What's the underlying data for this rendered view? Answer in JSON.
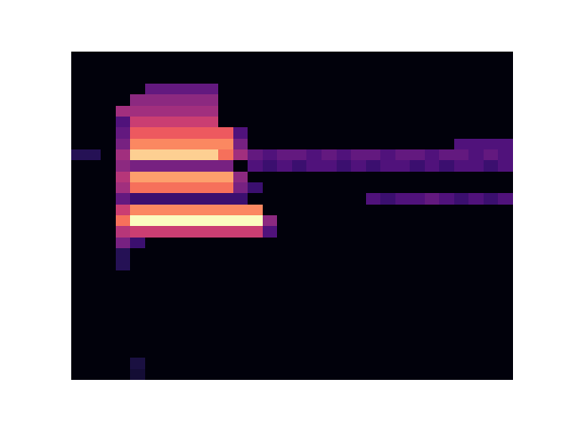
{
  "chart_data": {
    "type": "heatmap",
    "color": "magma",
    "tick_labels": false,
    "value_range": [
      0,
      100
    ],
    "cells": [
      [
        2,
        2,
        2,
        2,
        2,
        2,
        2,
        2,
        2,
        2,
        2,
        2,
        2,
        2,
        2,
        2,
        2,
        2,
        2,
        2,
        2,
        2,
        2,
        2,
        2,
        2,
        2,
        2,
        2,
        2
      ],
      [
        2,
        2,
        2,
        2,
        2,
        2,
        2,
        2,
        2,
        2,
        2,
        2,
        2,
        2,
        2,
        2,
        2,
        2,
        2,
        2,
        2,
        2,
        2,
        2,
        2,
        2,
        2,
        2,
        2,
        2
      ],
      [
        2,
        2,
        2,
        2,
        2,
        2,
        2,
        2,
        2,
        2,
        2,
        2,
        2,
        2,
        2,
        2,
        2,
        2,
        2,
        2,
        2,
        2,
        2,
        2,
        2,
        2,
        2,
        2,
        2,
        2
      ],
      [
        2,
        2,
        2,
        2,
        2,
        30,
        30,
        30,
        30,
        30,
        2,
        2,
        2,
        2,
        2,
        2,
        2,
        2,
        2,
        2,
        2,
        2,
        2,
        2,
        2,
        2,
        2,
        2,
        2,
        2
      ],
      [
        2,
        2,
        2,
        2,
        40,
        40,
        40,
        40,
        40,
        40,
        2,
        2,
        2,
        2,
        2,
        2,
        2,
        2,
        2,
        2,
        2,
        2,
        2,
        2,
        2,
        2,
        2,
        2,
        2,
        2
      ],
      [
        2,
        2,
        2,
        45,
        45,
        45,
        45,
        45,
        45,
        45,
        2,
        2,
        2,
        2,
        2,
        2,
        2,
        2,
        2,
        2,
        2,
        2,
        2,
        2,
        2,
        2,
        2,
        2,
        2,
        2
      ],
      [
        2,
        2,
        2,
        25,
        55,
        55,
        55,
        55,
        55,
        55,
        2,
        2,
        2,
        2,
        2,
        2,
        2,
        2,
        2,
        2,
        2,
        2,
        2,
        2,
        2,
        2,
        2,
        2,
        2,
        2
      ],
      [
        2,
        2,
        2,
        30,
        65,
        65,
        65,
        65,
        65,
        65,
        65,
        25,
        2,
        2,
        2,
        2,
        2,
        2,
        2,
        2,
        2,
        2,
        2,
        2,
        2,
        2,
        2,
        2,
        2,
        2
      ],
      [
        2,
        2,
        2,
        35,
        75,
        75,
        75,
        75,
        75,
        75,
        75,
        35,
        2,
        2,
        2,
        2,
        2,
        2,
        2,
        2,
        2,
        2,
        2,
        2,
        2,
        2,
        25,
        25,
        25,
        25
      ],
      [
        15,
        15,
        2,
        45,
        90,
        90,
        90,
        90,
        90,
        90,
        70,
        45,
        30,
        25,
        30,
        30,
        25,
        30,
        25,
        30,
        30,
        25,
        30,
        30,
        25,
        30,
        30,
        25,
        30,
        25
      ],
      [
        2,
        2,
        2,
        40,
        35,
        35,
        35,
        35,
        35,
        35,
        35,
        2,
        25,
        20,
        25,
        20,
        25,
        25,
        20,
        25,
        20,
        25,
        25,
        20,
        25,
        20,
        25,
        25,
        20,
        25
      ],
      [
        2,
        2,
        2,
        50,
        80,
        80,
        80,
        80,
        80,
        80,
        80,
        40,
        2,
        2,
        2,
        2,
        2,
        2,
        2,
        2,
        2,
        2,
        2,
        2,
        2,
        2,
        2,
        2,
        2,
        2
      ],
      [
        2,
        2,
        2,
        45,
        70,
        70,
        70,
        70,
        70,
        70,
        70,
        35,
        20,
        2,
        2,
        2,
        2,
        2,
        2,
        2,
        2,
        2,
        2,
        2,
        2,
        2,
        2,
        2,
        2,
        2
      ],
      [
        2,
        2,
        2,
        30,
        20,
        20,
        20,
        20,
        20,
        20,
        20,
        20,
        2,
        2,
        2,
        2,
        2,
        2,
        2,
        2,
        25,
        20,
        25,
        25,
        30,
        25,
        20,
        25,
        20,
        25
      ],
      [
        2,
        2,
        2,
        55,
        75,
        75,
        75,
        75,
        75,
        75,
        75,
        75,
        75,
        2,
        2,
        2,
        2,
        2,
        2,
        2,
        2,
        2,
        2,
        2,
        2,
        2,
        2,
        2,
        2,
        2
      ],
      [
        2,
        2,
        2,
        70,
        100,
        100,
        100,
        100,
        100,
        100,
        100,
        100,
        100,
        40,
        2,
        2,
        2,
        2,
        2,
        2,
        2,
        2,
        2,
        2,
        2,
        2,
        2,
        2,
        2,
        2
      ],
      [
        2,
        2,
        2,
        50,
        55,
        55,
        55,
        55,
        55,
        55,
        55,
        55,
        55,
        25,
        2,
        2,
        2,
        2,
        2,
        2,
        2,
        2,
        2,
        2,
        2,
        2,
        2,
        2,
        2,
        2
      ],
      [
        2,
        2,
        2,
        35,
        20,
        2,
        2,
        2,
        2,
        2,
        2,
        2,
        2,
        2,
        2,
        2,
        2,
        2,
        2,
        2,
        2,
        2,
        2,
        2,
        2,
        2,
        2,
        2,
        2,
        2
      ],
      [
        2,
        2,
        2,
        15,
        2,
        2,
        2,
        2,
        2,
        2,
        2,
        2,
        2,
        2,
        2,
        2,
        2,
        2,
        2,
        2,
        2,
        2,
        2,
        2,
        2,
        2,
        2,
        2,
        2,
        2
      ],
      [
        2,
        2,
        2,
        15,
        2,
        2,
        2,
        2,
        2,
        2,
        2,
        2,
        2,
        2,
        2,
        2,
        2,
        2,
        2,
        2,
        2,
        2,
        2,
        2,
        2,
        2,
        2,
        2,
        2,
        2
      ],
      [
        2,
        2,
        2,
        2,
        2,
        2,
        2,
        2,
        2,
        2,
        2,
        2,
        2,
        2,
        2,
        2,
        2,
        2,
        2,
        2,
        2,
        2,
        2,
        2,
        2,
        2,
        2,
        2,
        2,
        2
      ],
      [
        2,
        2,
        2,
        2,
        2,
        2,
        2,
        2,
        2,
        2,
        2,
        2,
        2,
        2,
        2,
        2,
        2,
        2,
        2,
        2,
        2,
        2,
        2,
        2,
        2,
        2,
        2,
        2,
        2,
        2
      ],
      [
        2,
        2,
        2,
        2,
        2,
        2,
        2,
        2,
        2,
        2,
        2,
        2,
        2,
        2,
        2,
        2,
        2,
        2,
        2,
        2,
        2,
        2,
        2,
        2,
        2,
        2,
        2,
        2,
        2,
        2
      ],
      [
        2,
        2,
        2,
        2,
        2,
        2,
        2,
        2,
        2,
        2,
        2,
        2,
        2,
        2,
        2,
        2,
        2,
        2,
        2,
        2,
        2,
        2,
        2,
        2,
        2,
        2,
        2,
        2,
        2,
        2
      ],
      [
        2,
        2,
        2,
        2,
        2,
        2,
        2,
        2,
        2,
        2,
        2,
        2,
        2,
        2,
        2,
        2,
        2,
        2,
        2,
        2,
        2,
        2,
        2,
        2,
        2,
        2,
        2,
        2,
        2,
        2
      ],
      [
        2,
        2,
        2,
        2,
        2,
        2,
        2,
        2,
        2,
        2,
        2,
        2,
        2,
        2,
        2,
        2,
        2,
        2,
        2,
        2,
        2,
        2,
        2,
        2,
        2,
        2,
        2,
        2,
        2,
        2
      ],
      [
        2,
        2,
        2,
        2,
        2,
        2,
        2,
        2,
        2,
        2,
        2,
        2,
        2,
        2,
        2,
        2,
        2,
        2,
        2,
        2,
        2,
        2,
        2,
        2,
        2,
        2,
        2,
        2,
        2,
        2
      ],
      [
        2,
        2,
        2,
        2,
        2,
        2,
        2,
        2,
        2,
        2,
        2,
        2,
        2,
        2,
        2,
        2,
        2,
        2,
        2,
        2,
        2,
        2,
        2,
        2,
        2,
        2,
        2,
        2,
        2,
        2
      ],
      [
        2,
        2,
        2,
        2,
        12,
        2,
        2,
        2,
        2,
        2,
        2,
        2,
        2,
        2,
        2,
        2,
        2,
        2,
        2,
        2,
        2,
        2,
        2,
        2,
        2,
        2,
        2,
        2,
        2,
        2
      ],
      [
        2,
        2,
        2,
        2,
        10,
        2,
        2,
        2,
        2,
        2,
        2,
        2,
        2,
        2,
        2,
        2,
        2,
        2,
        2,
        2,
        2,
        2,
        2,
        2,
        2,
        2,
        2,
        2,
        2,
        2
      ]
    ]
  }
}
